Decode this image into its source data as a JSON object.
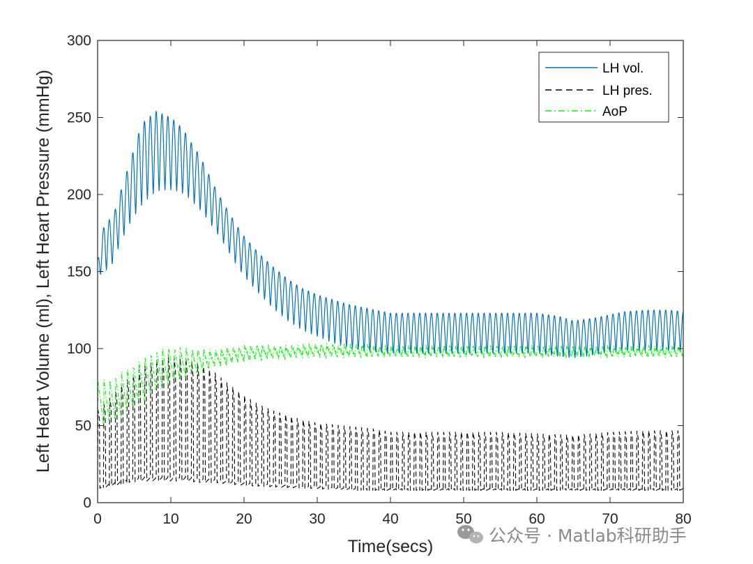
{
  "chart_data": {
    "type": "line",
    "xlabel": "Time(secs)",
    "ylabel": "Left Heart Volume (ml), Left Heart Pressure (mmHg)",
    "xlim": [
      0,
      80
    ],
    "ylim": [
      0,
      300
    ],
    "xticks": [
      0,
      10,
      20,
      30,
      40,
      50,
      60,
      70,
      80
    ],
    "yticks": [
      0,
      50,
      100,
      150,
      200,
      250,
      300
    ],
    "grid": false,
    "legend_position": "top-right",
    "beat_period_s": 0.8,
    "series": [
      {
        "name": "LH vol.",
        "color": "#0072BD",
        "style": "solid",
        "upper_envelope": {
          "t": [
            0,
            1,
            2,
            3,
            4,
            5,
            6,
            7,
            8,
            9,
            10,
            11,
            12,
            13,
            14,
            15,
            16,
            17,
            18,
            19,
            20,
            22,
            24,
            26,
            28,
            30,
            32,
            34,
            36,
            38,
            40,
            45,
            50,
            55,
            60,
            63,
            65,
            68,
            70,
            72,
            75,
            78,
            80
          ],
          "v": [
            158,
            183,
            184,
            200,
            215,
            230,
            246,
            250,
            254,
            252,
            250,
            246,
            240,
            232,
            225,
            215,
            205,
            196,
            188,
            180,
            173,
            162,
            153,
            145,
            139,
            135,
            132,
            129,
            127,
            125,
            123,
            123,
            123,
            123,
            123,
            121,
            118,
            120,
            122,
            124,
            125,
            125,
            124
          ]
        },
        "lower_envelope": {
          "t": [
            0,
            1,
            2,
            3,
            4,
            5,
            6,
            7,
            8,
            9,
            10,
            11,
            12,
            13,
            14,
            15,
            16,
            17,
            18,
            19,
            20,
            22,
            24,
            26,
            28,
            30,
            32,
            34,
            36,
            38,
            40,
            45,
            50,
            55,
            60,
            63,
            65,
            68,
            70,
            72,
            75,
            78,
            80
          ],
          "v": [
            147,
            150,
            155,
            167,
            178,
            186,
            193,
            198,
            202,
            203,
            203,
            202,
            200,
            195,
            190,
            184,
            177,
            170,
            162,
            154,
            147,
            136,
            126,
            118,
            112,
            108,
            104,
            101,
            99,
            98,
            97,
            97,
            97,
            97,
            97,
            95,
            94,
            96,
            98,
            99,
            99,
            99,
            99
          ]
        }
      },
      {
        "name": "LH pres.",
        "color": "#000000",
        "style": "dashed",
        "upper_envelope": {
          "t": [
            0,
            2,
            4,
            6,
            8,
            10,
            12,
            14,
            16,
            18,
            20,
            22,
            24,
            26,
            28,
            30,
            32,
            34,
            36,
            38,
            40,
            45,
            50,
            55,
            60,
            65,
            70,
            75,
            80
          ],
          "v": [
            60,
            70,
            80,
            88,
            93,
            95,
            94,
            90,
            85,
            77,
            70,
            64,
            60,
            57,
            54,
            52,
            51,
            50,
            49,
            48,
            46,
            46,
            46,
            46,
            45,
            44,
            46,
            47,
            47
          ]
        },
        "lower_envelope": {
          "t": [
            0,
            2,
            4,
            6,
            8,
            10,
            12,
            14,
            16,
            18,
            20,
            25,
            30,
            35,
            40,
            50,
            60,
            70,
            80
          ],
          "v": [
            9,
            11,
            13,
            14,
            14,
            14,
            14,
            13,
            13,
            12,
            11,
            10,
            9,
            8,
            8,
            8,
            8,
            8,
            8
          ]
        }
      },
      {
        "name": "AoP",
        "color": "#00FF00",
        "style": "dash-dot",
        "upper_envelope": {
          "t": [
            0,
            2,
            4,
            6,
            8,
            10,
            12,
            14,
            16,
            18,
            20,
            22,
            24,
            26,
            28,
            30,
            35,
            40,
            45,
            50,
            55,
            60,
            65,
            70,
            75,
            80
          ],
          "v": [
            78,
            80,
            86,
            92,
            98,
            100,
            100,
            99,
            99,
            100,
            101,
            102,
            101,
            101,
            102,
            102,
            102,
            101,
            101,
            101,
            101,
            101,
            101,
            101,
            101,
            101
          ]
        },
        "lower_envelope": {
          "t": [
            0,
            2,
            4,
            6,
            8,
            10,
            12,
            14,
            16,
            18,
            20,
            22,
            24,
            26,
            28,
            30,
            35,
            40,
            45,
            50,
            55,
            60,
            65,
            70,
            75,
            80
          ],
          "v": [
            49,
            52,
            58,
            66,
            73,
            78,
            82,
            85,
            88,
            90,
            92,
            93,
            94,
            94,
            95,
            95,
            95,
            95,
            95,
            95,
            95,
            95,
            95,
            95,
            95,
            95
          ]
        }
      }
    ]
  },
  "watermark": {
    "text": "公众号 · Matlab科研助手",
    "icon": "wechat-icon",
    "color": "#8a8a8a"
  }
}
